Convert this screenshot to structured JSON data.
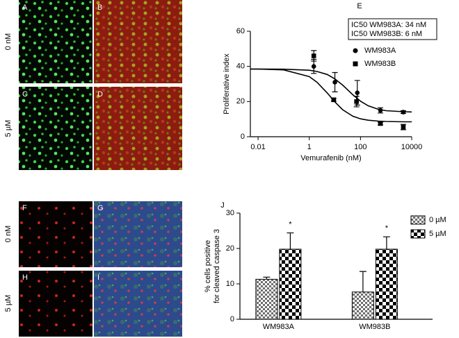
{
  "panels": {
    "top": {
      "letters": [
        "A",
        "B",
        "C",
        "D"
      ],
      "rows": [
        "0 nM",
        "5 µM"
      ]
    },
    "bottom": {
      "letters": [
        "F",
        "G",
        "H",
        "I"
      ],
      "rows": [
        "0 nM",
        "5 µM"
      ]
    }
  },
  "chart_data": [
    {
      "type": "scatter",
      "label": "E",
      "xlabel": "Vemurafenib (nM)",
      "ylabel": "Proliferative index",
      "xscale": "log",
      "xlim": [
        0.005,
        10000
      ],
      "xticks": [
        0.01,
        1,
        100,
        10000
      ],
      "ylim": [
        0,
        60
      ],
      "yticks": [
        0,
        20,
        40,
        60
      ],
      "annotation": [
        "IC50 WM983A: 34 nM",
        "IC50 WM983B: 6 nM"
      ],
      "fit_x": [
        0.005,
        0.01,
        0.1,
        1,
        2,
        5,
        10,
        20,
        50,
        100,
        200,
        500,
        1000,
        5000,
        10000
      ],
      "series": [
        {
          "name": "WM983A",
          "color": "#000000",
          "marker": "circle",
          "x": [
            1.5,
            10,
            75,
            600,
            4700
          ],
          "values": [
            40,
            31,
            25,
            15,
            14
          ],
          "errors": [
            4,
            5.5,
            7,
            1.5,
            0.8
          ],
          "fit": [
            38.5,
            38.5,
            38.4,
            37.8,
            37.1,
            35.4,
            32.9,
            29.4,
            23.9,
            20.2,
            17.6,
            15.6,
            14.8,
            14.2,
            14.1
          ]
        },
        {
          "name": "WM983B",
          "color": "#000000",
          "marker": "square",
          "x": [
            1.5,
            9,
            70,
            600,
            4700
          ],
          "values": [
            46,
            21,
            20,
            7.5,
            5.5
          ],
          "errors": [
            3,
            0.8,
            3,
            0.8,
            1.5
          ],
          "fit": [
            38.5,
            38.5,
            38.0,
            34.2,
            31.0,
            24.9,
            19.8,
            15.4,
            11.7,
            10.2,
            9.4,
            8.9,
            8.7,
            8.5,
            8.5
          ]
        }
      ]
    },
    {
      "type": "bar",
      "label": "J",
      "ylabel": [
        "% cells positive",
        "for cleaved caspase 3"
      ],
      "categories": [
        "WM983A",
        "WM983B"
      ],
      "ylim": [
        0,
        30
      ],
      "yticks": [
        0,
        10,
        20,
        30
      ],
      "series": [
        {
          "name": "0 µM",
          "color": "#6e6e6e",
          "values": [
            11.3,
            7.7
          ],
          "errors": [
            0.6,
            5.8
          ]
        },
        {
          "name": "5 µM",
          "color": "#000000",
          "values": [
            19.8,
            19.8
          ],
          "errors": [
            4.6,
            3.5
          ],
          "significance": [
            "*",
            "*"
          ]
        }
      ]
    }
  ]
}
